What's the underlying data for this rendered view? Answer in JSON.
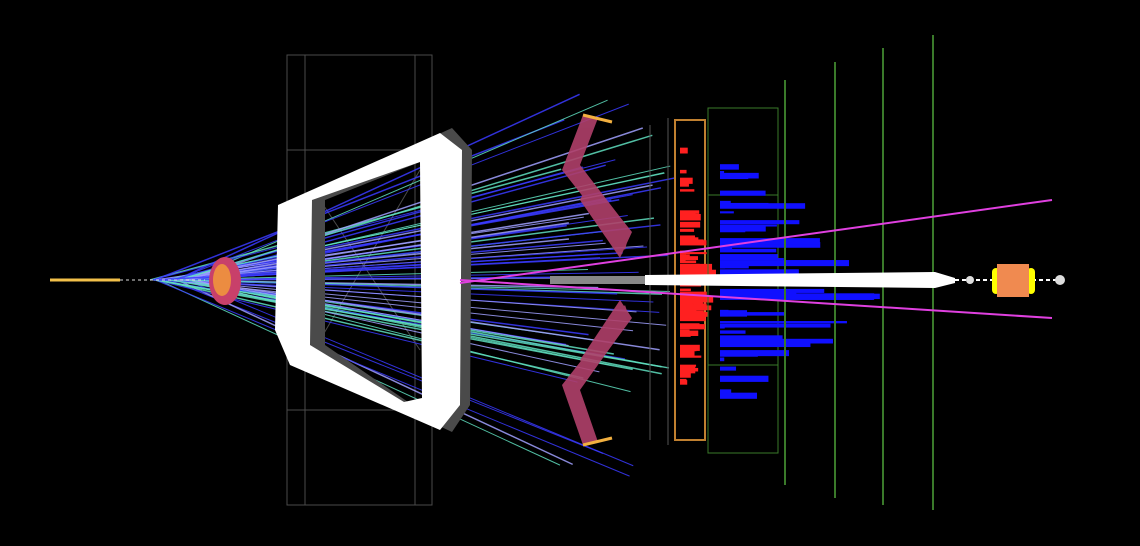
{
  "colors": {
    "background": "#000000",
    "beam": "#f2c04a",
    "vertex_blob": "#c8406a",
    "vertex_core": "#f29a3a",
    "magnet": "#ffffff",
    "magnet_shadow": "#555555",
    "frame": "#555555",
    "rich_mirror": "#b0406a",
    "rich_cap": "#f2b040",
    "track_blue": "#3a3aff",
    "track_cyan": "#60e0c0",
    "track_light": "#a0a0ff",
    "muon_track": "#e040e0",
    "ecal": "#ff2020",
    "hcal": "#1010ff",
    "station_green": "#3a7a2a",
    "orange_box": "#c08030",
    "beampipe": "#ffffff",
    "end_block": "#f08a50",
    "end_block_side": "#ffff00"
  }
}
